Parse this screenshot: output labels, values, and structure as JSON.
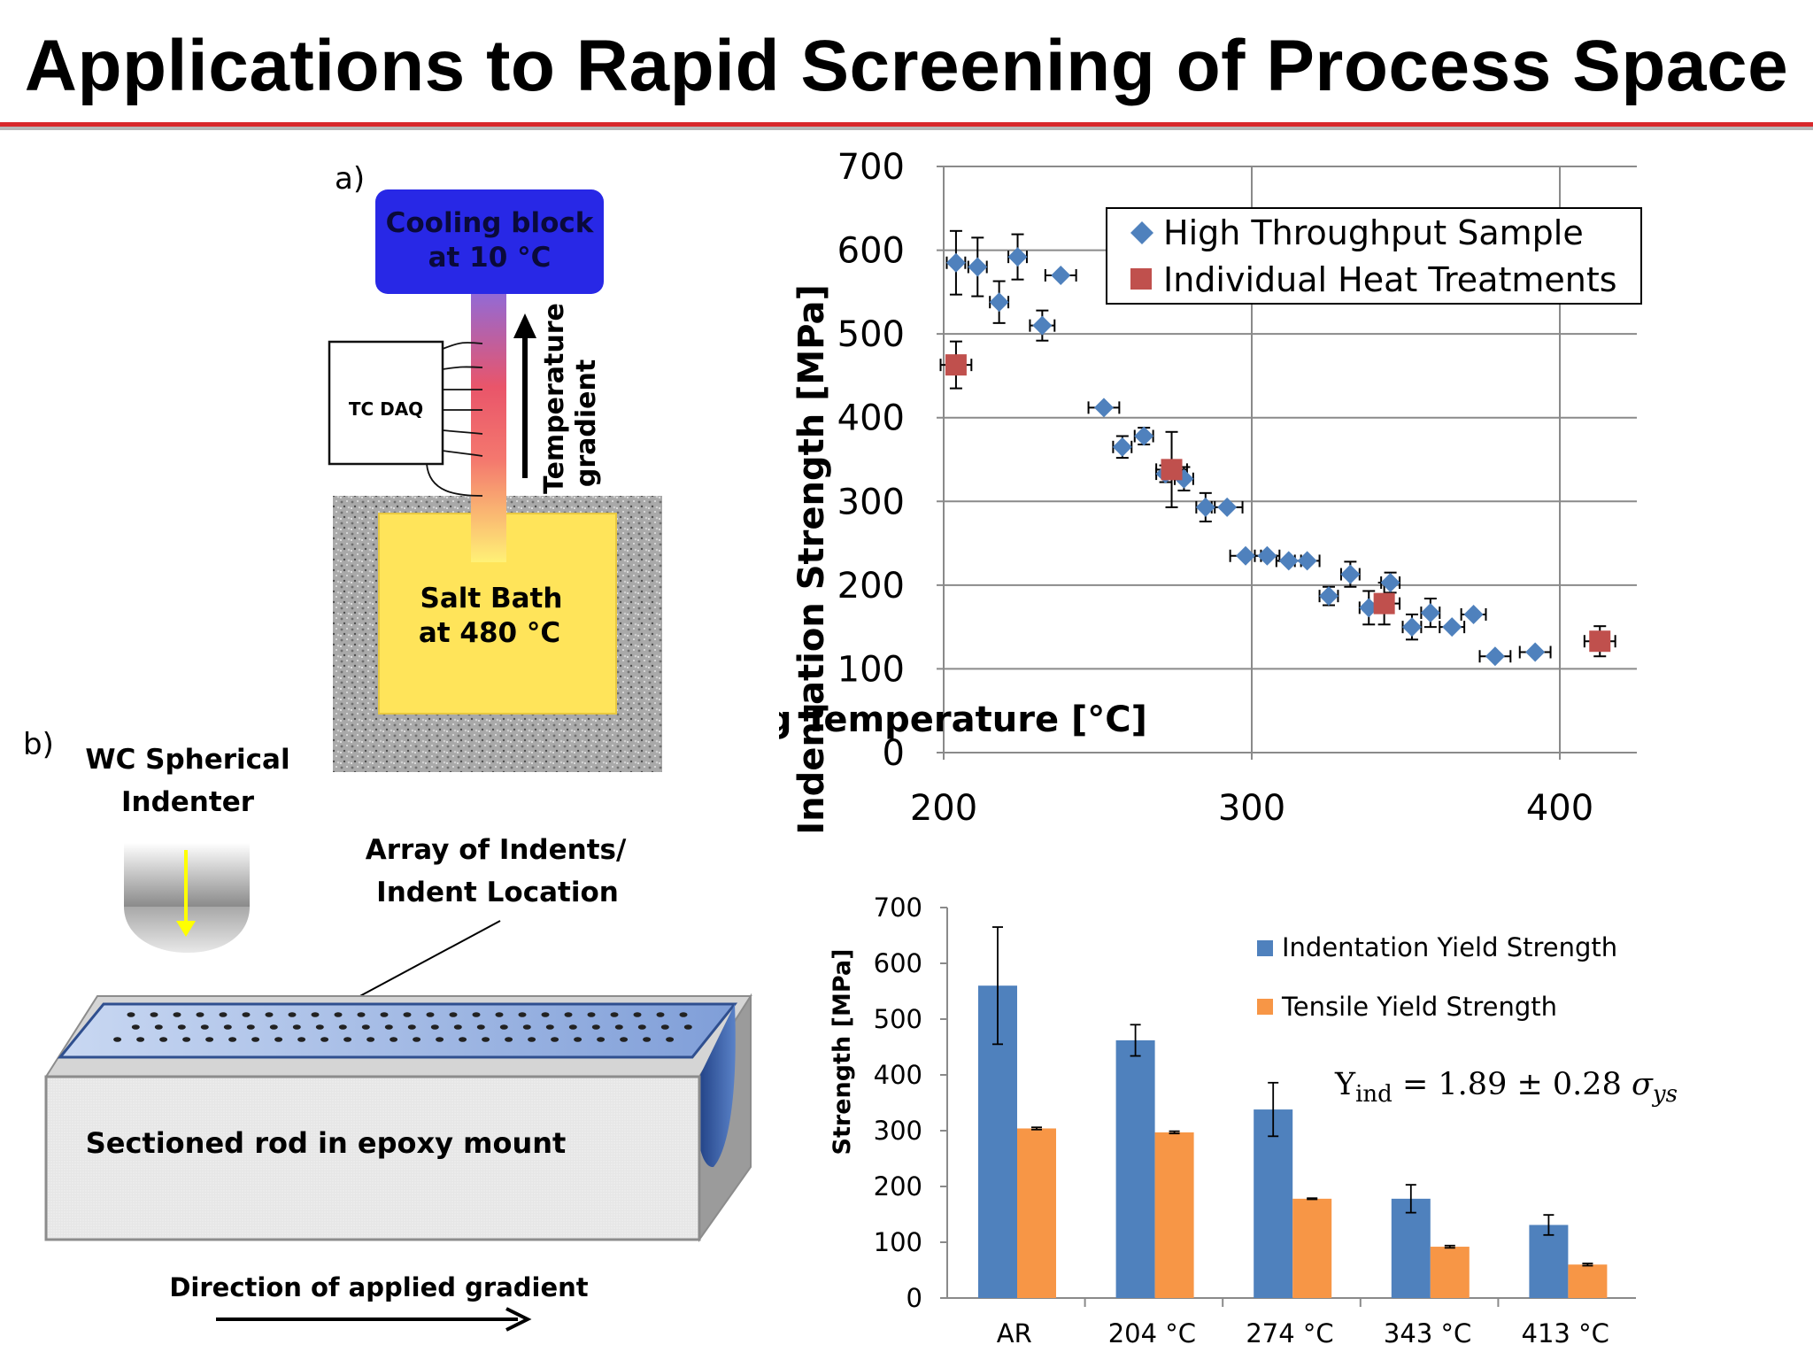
{
  "title": "Applications to Rapid Screening of Process Space",
  "colors": {
    "title_rule": "#d8282b",
    "high_throughput": "#4f81bd",
    "individual": "#c0504d",
    "indentation_bar": "#4f81bd",
    "tensile_bar": "#f79646"
  },
  "panel_a": {
    "label": "a)",
    "cooling_block_line1": "Cooling block",
    "cooling_block_line2": "at 10 °C",
    "tc_daq": "TC DAQ",
    "gradient_label_line1": "Temperature",
    "gradient_label_line2": "gradient",
    "salt_bath_line1": "Salt Bath",
    "salt_bath_line2": "at 480 °C"
  },
  "panel_b": {
    "label": "b)",
    "indenter_line1": "WC Spherical",
    "indenter_line2": "Indenter",
    "array_line1": "Array of Indents/",
    "array_line2": "Indent Location",
    "rod_label": "Sectioned rod in epoxy mount",
    "direction_label": "Direction of applied gradient"
  },
  "chart_data": [
    {
      "type": "scatter",
      "xlabel": "Aging Temperature [°C]",
      "ylabel": "Indentation Strength [MPa]",
      "xlim": [
        200,
        425
      ],
      "ylim": [
        0,
        700
      ],
      "xticks": [
        "200",
        "300",
        "400"
      ],
      "yticks": [
        "0",
        "100",
        "200",
        "300",
        "400",
        "500",
        "600",
        "700"
      ],
      "grid": true,
      "legend_position": "top-right",
      "series": [
        {
          "name": "High Throughput Sample",
          "marker": "diamond",
          "points": [
            {
              "x": 204,
              "y": 585,
              "ex": 3,
              "ey": 38
            },
            {
              "x": 211,
              "y": 580,
              "ex": 3,
              "ey": 35
            },
            {
              "x": 218,
              "y": 538,
              "ex": 3,
              "ey": 25
            },
            {
              "x": 224,
              "y": 592,
              "ex": 3,
              "ey": 27
            },
            {
              "x": 232,
              "y": 510,
              "ex": 4,
              "ey": 18
            },
            {
              "x": 238,
              "y": 570,
              "ex": 5,
              "ey": 0
            },
            {
              "x": 252,
              "y": 412,
              "ex": 5,
              "ey": 0
            },
            {
              "x": 258,
              "y": 365,
              "ex": 3,
              "ey": 13
            },
            {
              "x": 265,
              "y": 378,
              "ex": 3,
              "ey": 10
            },
            {
              "x": 272,
              "y": 333,
              "ex": 3,
              "ey": 10
            },
            {
              "x": 278,
              "y": 327,
              "ex": 3,
              "ey": 14
            },
            {
              "x": 285,
              "y": 293,
              "ex": 3,
              "ey": 17
            },
            {
              "x": 292,
              "y": 293,
              "ex": 5,
              "ey": 0
            },
            {
              "x": 298,
              "y": 235,
              "ex": 5,
              "ey": 0
            },
            {
              "x": 305,
              "y": 235,
              "ex": 4,
              "ey": 0
            },
            {
              "x": 312,
              "y": 229,
              "ex": 4,
              "ey": 0
            },
            {
              "x": 318,
              "y": 229,
              "ex": 4,
              "ey": 0
            },
            {
              "x": 325,
              "y": 187,
              "ex": 3,
              "ey": 11
            },
            {
              "x": 332,
              "y": 213,
              "ex": 3,
              "ey": 15
            },
            {
              "x": 338,
              "y": 173,
              "ex": 3,
              "ey": 20
            },
            {
              "x": 345,
              "y": 203,
              "ex": 3,
              "ey": 12
            },
            {
              "x": 352,
              "y": 150,
              "ex": 3,
              "ey": 15
            },
            {
              "x": 358,
              "y": 167,
              "ex": 3,
              "ey": 17
            },
            {
              "x": 365,
              "y": 150,
              "ex": 4,
              "ey": 0
            },
            {
              "x": 372,
              "y": 165,
              "ex": 4,
              "ey": 0
            },
            {
              "x": 379,
              "y": 115,
              "ex": 5,
              "ey": 0
            },
            {
              "x": 392,
              "y": 120,
              "ex": 5,
              "ey": 0
            }
          ]
        },
        {
          "name": "Individual Heat Treatments",
          "marker": "square",
          "points": [
            {
              "x": 204,
              "y": 463,
              "ex": 5,
              "ey": 28
            },
            {
              "x": 274,
              "y": 338,
              "ex": 5,
              "ey": 45
            },
            {
              "x": 343,
              "y": 178,
              "ex": 5,
              "ey": 25
            },
            {
              "x": 413,
              "y": 133,
              "ex": 5,
              "ey": 18
            }
          ]
        }
      ]
    },
    {
      "type": "bar",
      "ylabel": "Strength [MPa]",
      "ylim": [
        0,
        700
      ],
      "yticks": [
        "0",
        "100",
        "200",
        "300",
        "400",
        "500",
        "600",
        "700"
      ],
      "categories": [
        "AR",
        "204 °C",
        "274 °C",
        "343 °C",
        "413 °C"
      ],
      "legend_position": "top-right",
      "series": [
        {
          "name": "Indentation Yield Strength",
          "values": [
            560,
            462,
            338,
            178,
            131
          ],
          "errors": [
            105,
            28,
            48,
            25,
            18
          ]
        },
        {
          "name": "Tensile Yield Strength",
          "values": [
            304,
            297,
            178,
            92,
            60
          ],
          "errors": [
            2,
            2,
            1,
            2,
            2
          ]
        }
      ],
      "annotation": "Y_ind = 1.89 ± 0.28 σ_ys"
    }
  ]
}
